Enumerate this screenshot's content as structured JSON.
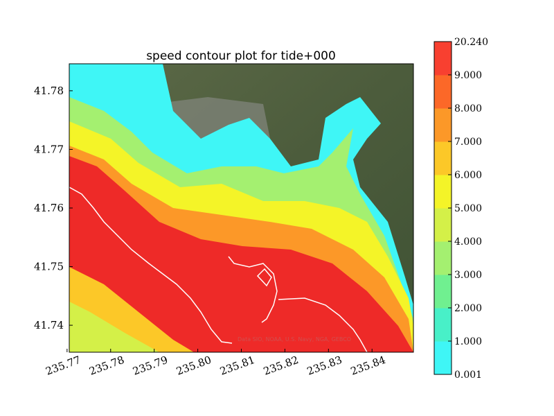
{
  "chart_data": {
    "type": "heatmap",
    "title": "speed contour plot for tide+000",
    "xlabel": "",
    "ylabel": "",
    "xlim": [
      235.7705,
      235.8495
    ],
    "ylim": [
      41.7354,
      41.7846
    ],
    "x_ticks": [
      "235.77",
      "235.78",
      "235.79",
      "235.80",
      "235.81",
      "235.82",
      "235.83",
      "235.84"
    ],
    "x_tick_values": [
      235.77,
      235.78,
      235.79,
      235.8,
      235.81,
      235.82,
      235.83,
      235.84
    ],
    "y_ticks": [
      "41.74",
      "41.75",
      "41.76",
      "41.77",
      "41.78"
    ],
    "y_tick_values": [
      41.74,
      41.75,
      41.76,
      41.77,
      41.78
    ],
    "colorbar": {
      "levels": [
        "0.001",
        "1.000",
        "2.000",
        "3.000",
        "4.000",
        "5.000",
        "6.000",
        "7.000",
        "8.000",
        "9.000",
        "20.240"
      ],
      "colors": [
        "#3ff6f6",
        "#48f0c8",
        "#70f090",
        "#a4f070",
        "#d4f048",
        "#f4f428",
        "#fcc828",
        "#fc9828",
        "#fc6828",
        "#f84030"
      ]
    },
    "attribution": "Data SIO, NOAA, U.S. Navy, NGA, GEBCO"
  }
}
